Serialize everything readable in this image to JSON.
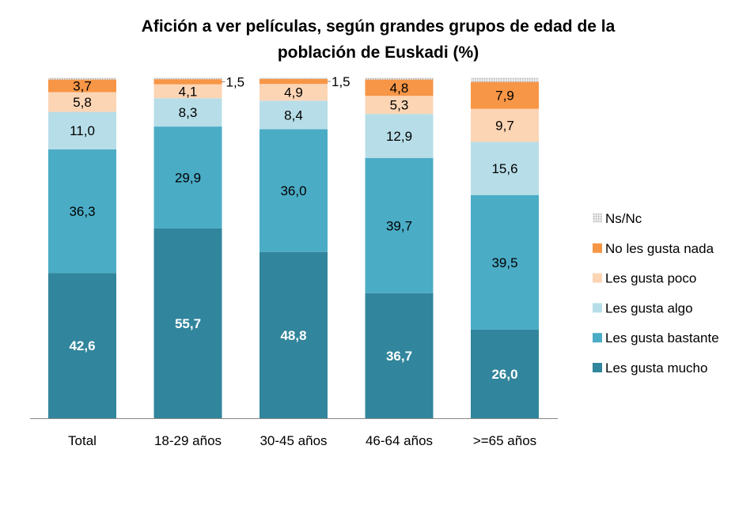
{
  "chart_data": {
    "type": "bar",
    "stacked": true,
    "title_lines": [
      "Afición a ver películas, según grandes grupos de edad de la",
      "población de Euskadi (%)"
    ],
    "xlabel": "",
    "ylabel": "",
    "ylim": [
      0,
      100
    ],
    "grid": false,
    "legend_position": "right",
    "categories": [
      "Total",
      "18-29 años",
      "30-45 años",
      "46-64 años",
      ">=65 años"
    ],
    "series": [
      {
        "name": "Les gusta mucho",
        "color": "#31859C",
        "label_color": "#ffffff",
        "bold": true,
        "values": [
          42.6,
          55.7,
          48.8,
          36.7,
          26.0
        ]
      },
      {
        "name": "Les gusta bastante",
        "color": "#4BACC6",
        "label_color": "#000000",
        "values": [
          36.3,
          29.9,
          36.0,
          39.7,
          39.5
        ]
      },
      {
        "name": "Les gusta algo",
        "color": "#B7DEE8",
        "label_color": "#000000",
        "values": [
          11.0,
          8.3,
          8.4,
          12.9,
          15.6
        ]
      },
      {
        "name": "Les gusta poco",
        "color": "#FCD5B5",
        "label_color": "#000000",
        "values": [
          5.8,
          4.1,
          4.9,
          5.3,
          9.7
        ]
      },
      {
        "name": "No les gusta nada",
        "color": "#F79646",
        "label_color": "#000000",
        "values": [
          3.7,
          1.5,
          1.5,
          4.8,
          7.9
        ]
      },
      {
        "name": "Ns/Nc",
        "color": "#D9D9D9",
        "values": [
          0.6,
          0.5,
          0.4,
          0.6,
          1.3
        ],
        "show_labels": false
      }
    ]
  }
}
